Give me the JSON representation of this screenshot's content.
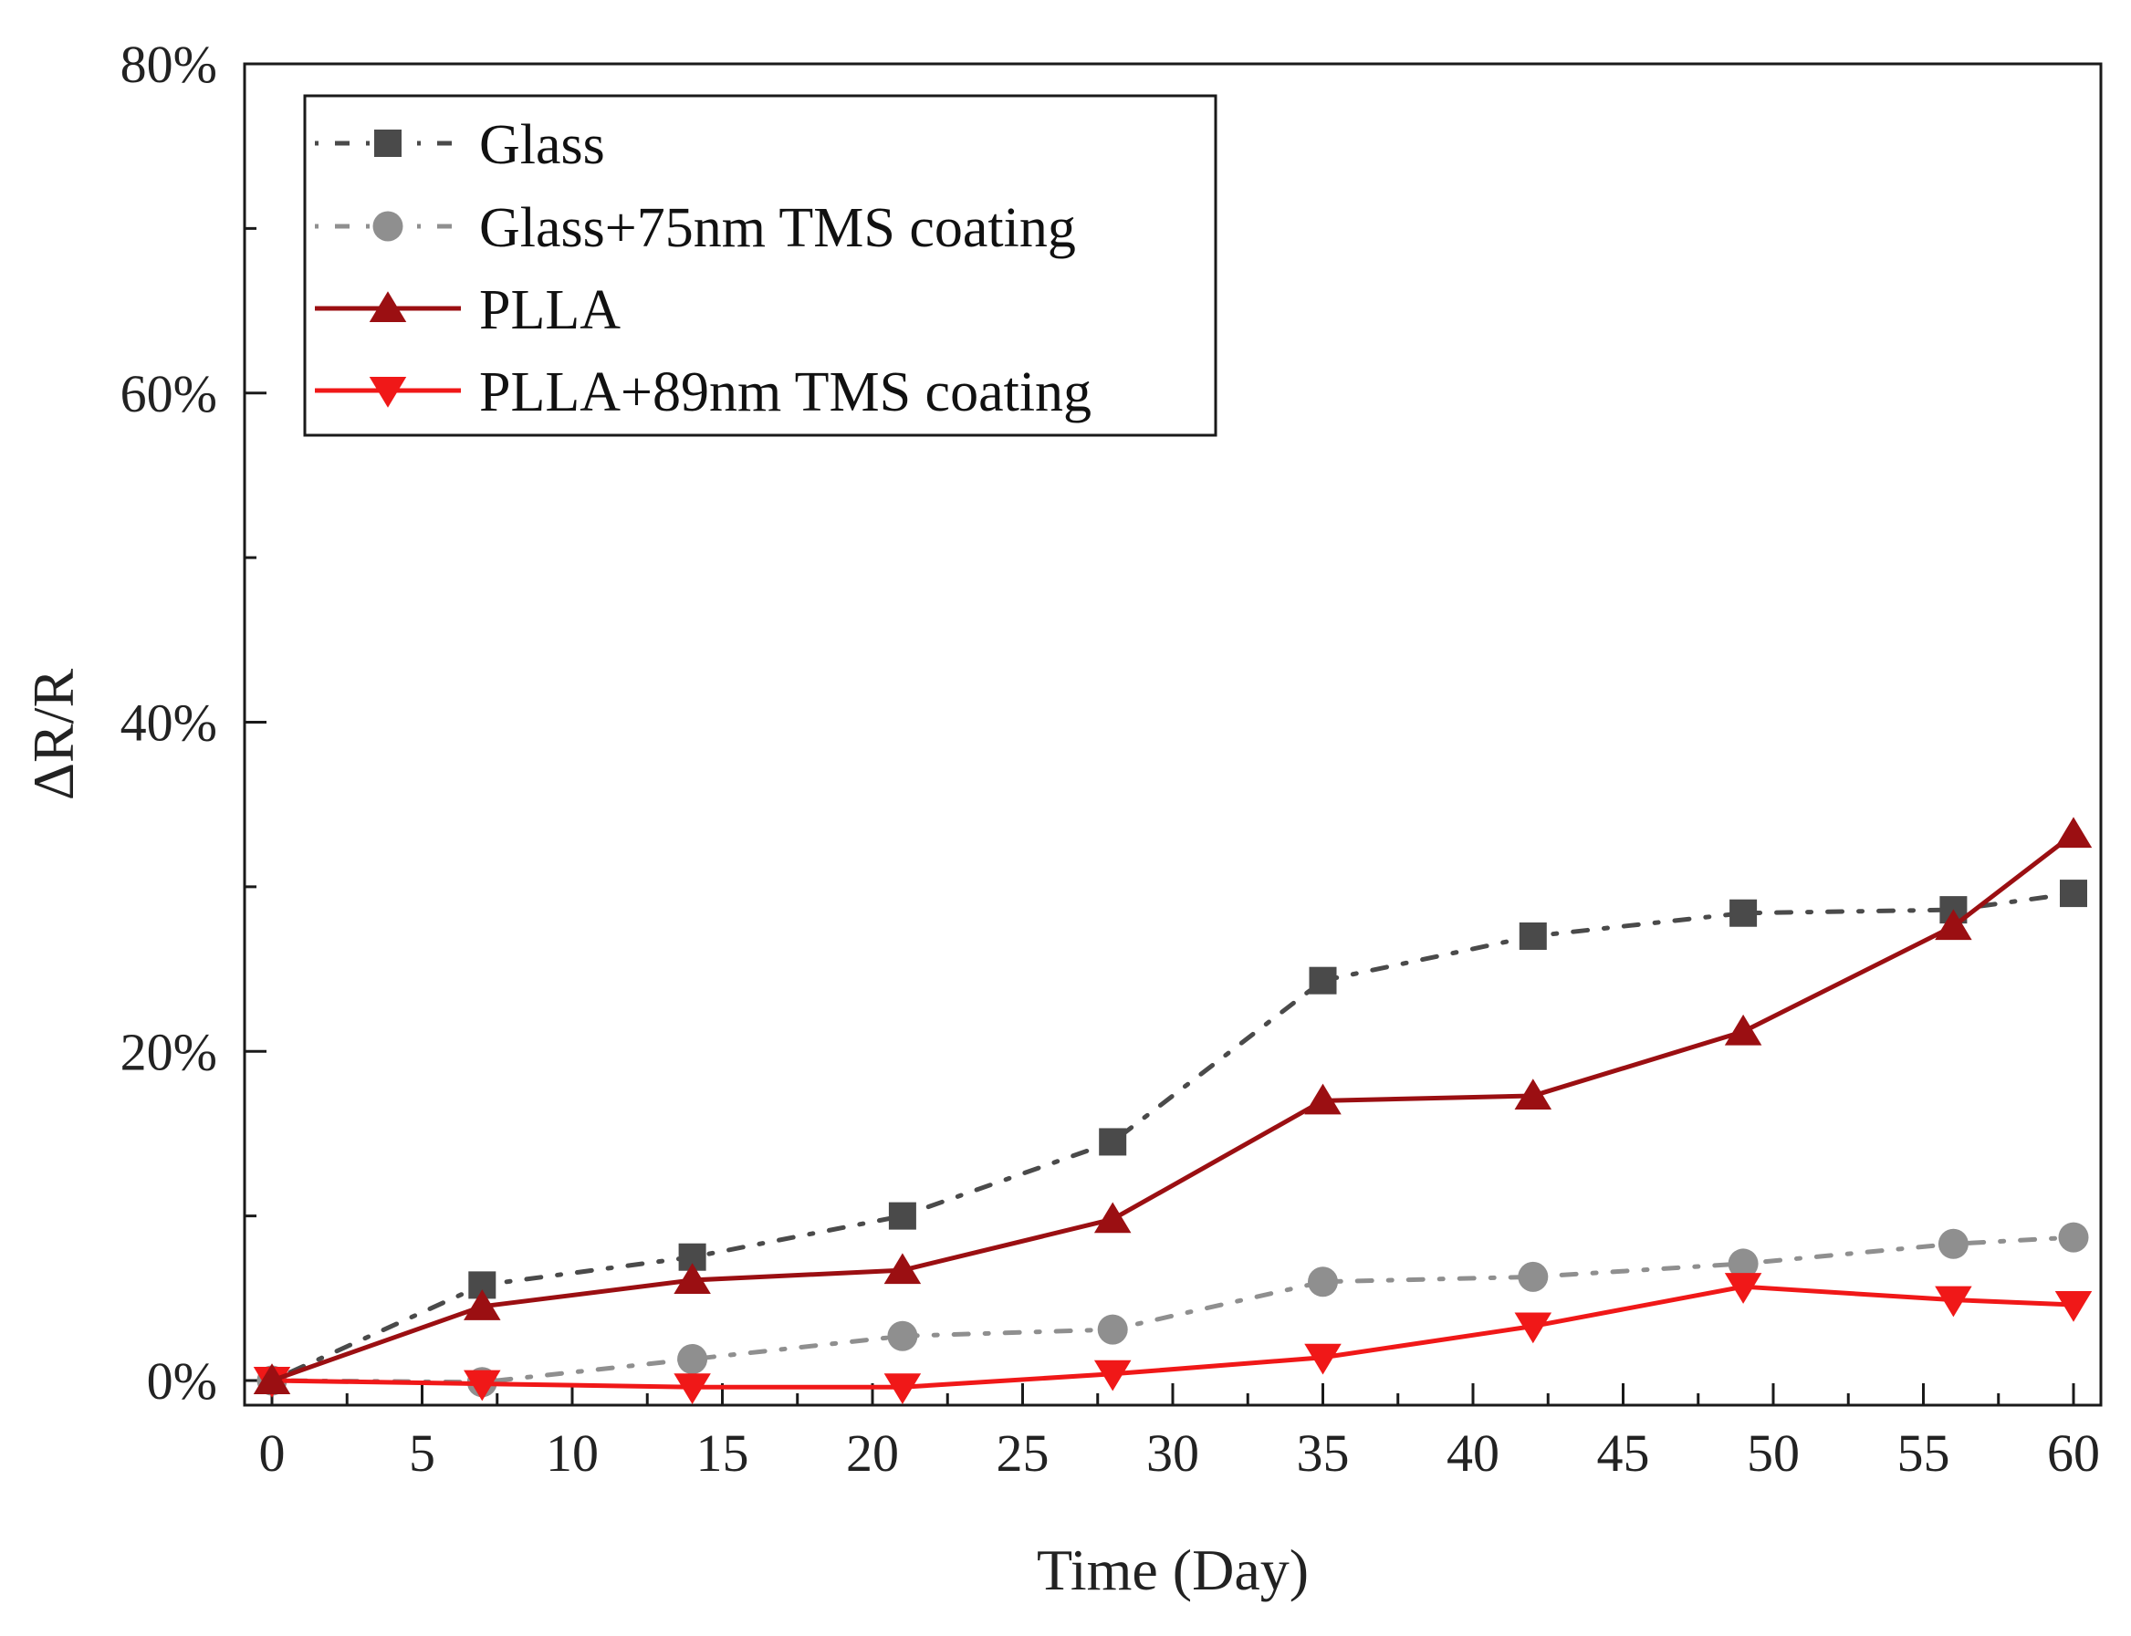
{
  "chart_data": {
    "type": "line",
    "xlabel": "Time (Day)",
    "ylabel": "ΔR/R",
    "xlim": [
      -2,
      61
    ],
    "ylim": [
      -1,
      80
    ],
    "x_ticks": [
      0,
      5,
      10,
      15,
      20,
      25,
      30,
      35,
      40,
      45,
      50,
      55,
      60
    ],
    "x_tick_labels": [
      "0",
      "5",
      "10",
      "15",
      "20",
      "25",
      "30",
      "35",
      "40",
      "45",
      "50",
      "55",
      "60"
    ],
    "y_ticks": [
      0,
      20,
      40,
      60,
      80
    ],
    "y_tick_labels": [
      "0%",
      "20%",
      "40%",
      "60%",
      "80%"
    ],
    "grid": false,
    "legend_position": "top-left",
    "x": [
      0,
      7,
      14,
      21,
      28,
      35,
      42,
      49,
      56,
      60
    ],
    "series": [
      {
        "name": "Glass",
        "values": [
          0,
          5.8,
          7.5,
          10.0,
          14.5,
          24.3,
          27.0,
          28.4,
          28.6,
          29.6
        ],
        "color": "#4a4a4a",
        "line_style": "dash-dot",
        "marker": "square"
      },
      {
        "name": "Glass+75nm TMS coating",
        "values": [
          0,
          -0.1,
          1.3,
          2.7,
          3.1,
          6.0,
          6.3,
          7.1,
          8.3,
          8.7
        ],
        "color": "#8f8f8f",
        "line_style": "dash-dot",
        "marker": "circle"
      },
      {
        "name": "PLLA",
        "values": [
          0,
          4.5,
          6.1,
          6.7,
          9.8,
          17.0,
          17.3,
          21.2,
          27.6,
          33.2
        ],
        "color": "#9b0f12",
        "line_style": "solid",
        "marker": "triangle-up"
      },
      {
        "name": "PLLA+89nm TMS coating",
        "values": [
          0,
          -0.2,
          -0.4,
          -0.4,
          0.4,
          1.4,
          3.3,
          5.7,
          4.9,
          4.6
        ],
        "color": "#f01818",
        "line_style": "solid",
        "marker": "triangle-down"
      }
    ]
  }
}
